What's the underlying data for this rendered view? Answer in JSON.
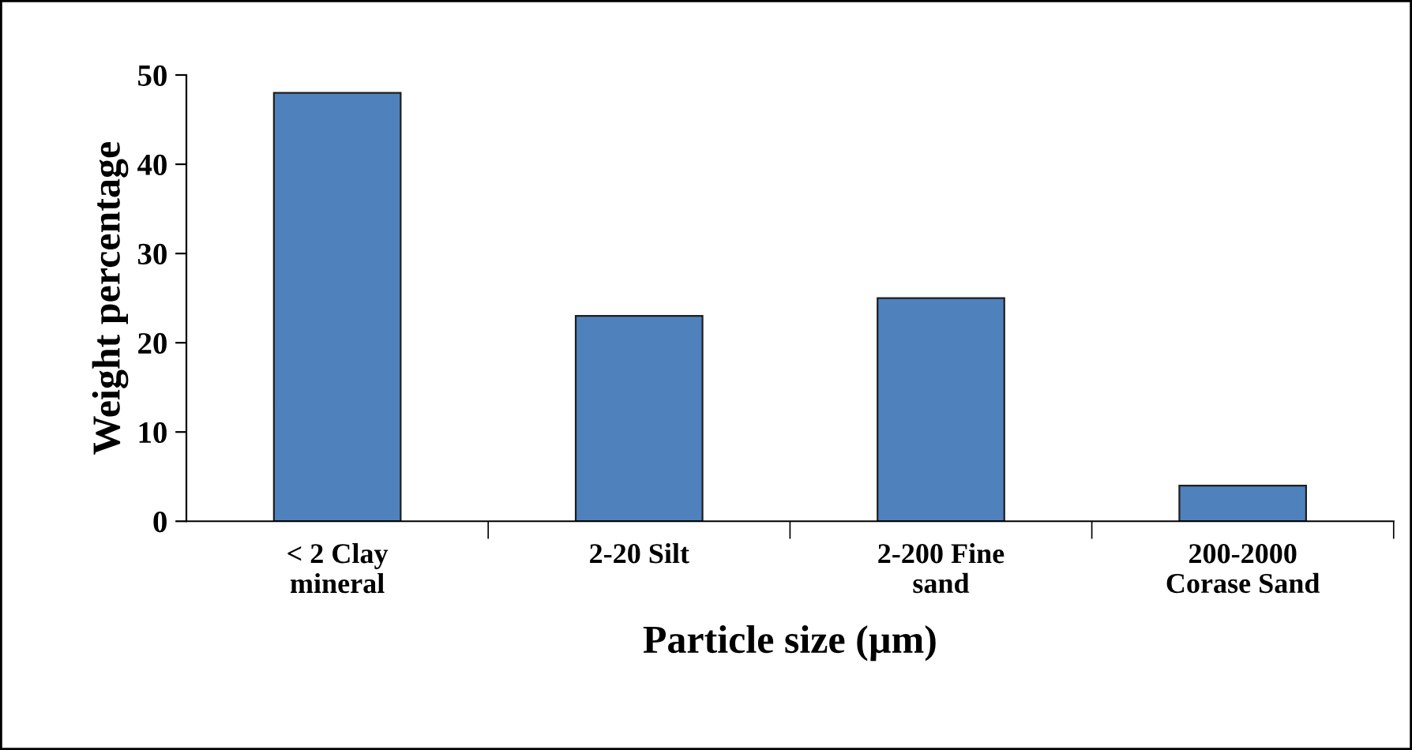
{
  "chart_data": {
    "type": "bar",
    "xlabel": "Particle size (µm)",
    "ylabel": "Weight percentage",
    "categories": [
      "< 2 Clay\nmineral",
      "2-20 Silt",
      "2-200 Fine\nsand",
      "200-2000\nCorase Sand"
    ],
    "values": [
      48,
      23,
      25,
      4
    ],
    "color": "#4f81bd",
    "ylim": [
      0,
      50
    ],
    "yticks": [
      0,
      10,
      20,
      30,
      40,
      50
    ],
    "grid": false,
    "legend": false
  }
}
